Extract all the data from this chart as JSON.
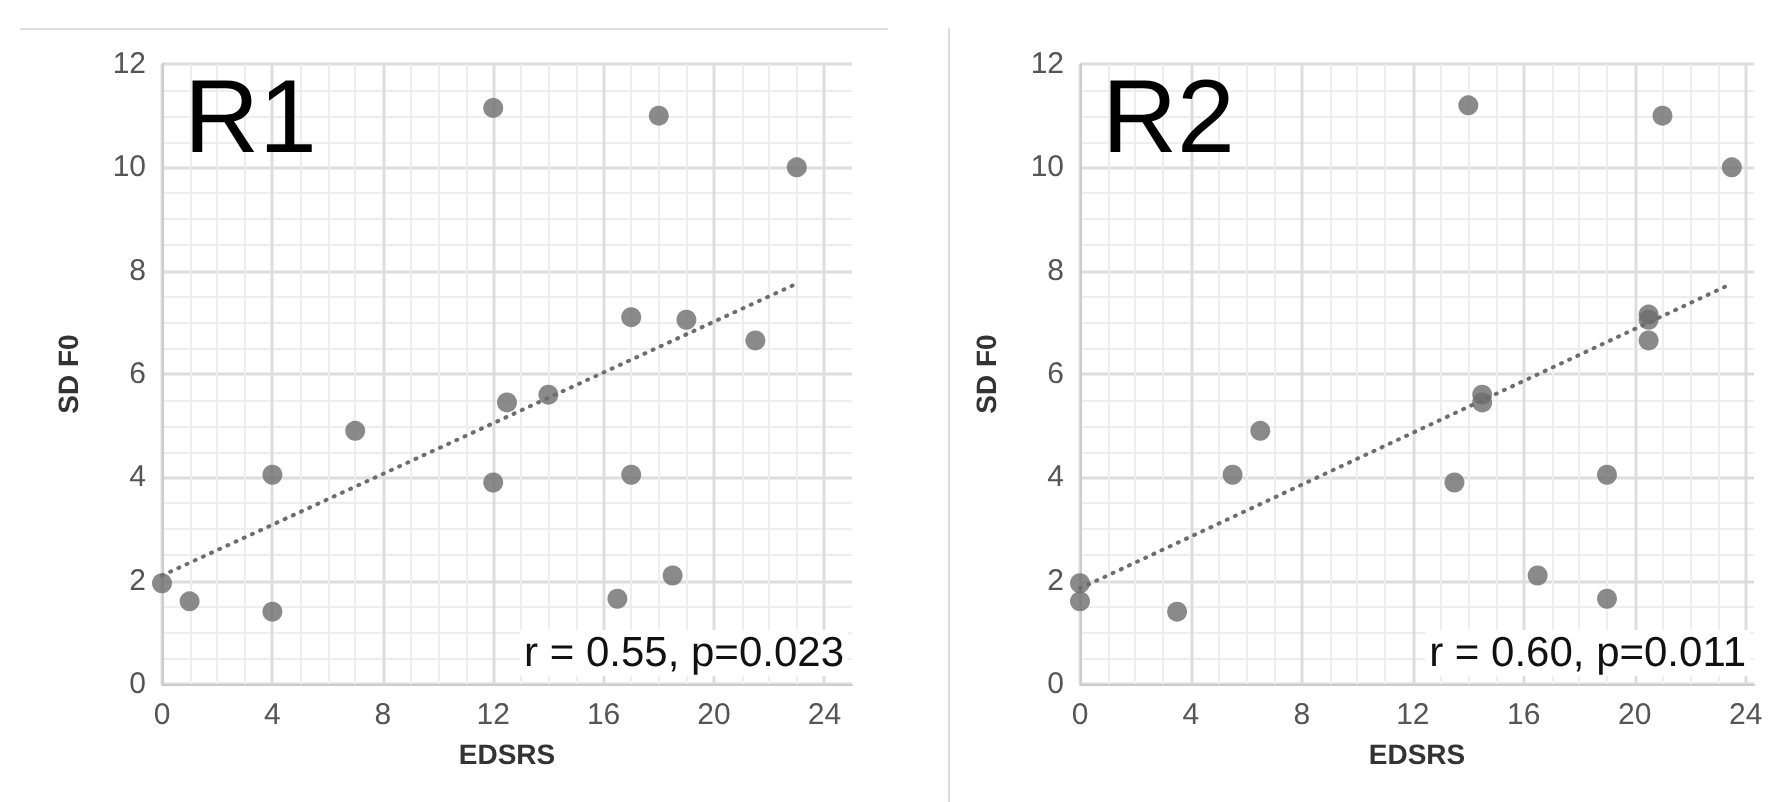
{
  "chart_data": [
    {
      "type": "scatter",
      "title": "R1",
      "xlabel": "EDSRS",
      "ylabel": "SD F0",
      "annotations": [
        "r = 0.55, p=0.023"
      ],
      "xlim": [
        0,
        25
      ],
      "ylim": [
        0,
        12
      ],
      "xticks": [
        0,
        4,
        8,
        12,
        16,
        20,
        24
      ],
      "yticks": [
        0,
        2,
        4,
        6,
        8,
        10,
        12
      ],
      "grid": true,
      "marker": "circle",
      "series": [
        {
          "color": "#6d6d6d",
          "x": [
            0,
            1,
            4,
            4,
            7,
            12,
            12,
            12.5,
            14,
            16.5,
            17,
            17,
            18,
            18.5,
            19,
            21.5,
            23
          ],
          "values": [
            1.95,
            1.6,
            1.4,
            4.05,
            4.9,
            11.15,
            3.9,
            5.45,
            5.6,
            1.65,
            7.1,
            4.05,
            11,
            2.1,
            7.05,
            6.65,
            10
          ]
        },
        {
          "type": "line",
          "color": "#6d6d6d",
          "line_style": "dotted",
          "marker": "none",
          "x": [
            0,
            23
          ],
          "values": [
            2.1,
            7.75
          ]
        }
      ]
    },
    {
      "type": "scatter",
      "title": "R2",
      "xlabel": "EDSRS",
      "ylabel": "SD F0",
      "annotations": [
        "r = 0.60, p=0.011"
      ],
      "xlim": [
        0,
        24.3
      ],
      "ylim": [
        0,
        12
      ],
      "xticks": [
        0,
        4,
        8,
        12,
        16,
        20,
        24
      ],
      "yticks": [
        0,
        2,
        4,
        6,
        8,
        10,
        12
      ],
      "grid": true,
      "marker": "circle",
      "series": [
        {
          "color": "#6d6d6d",
          "x": [
            0,
            0,
            3.5,
            5.5,
            6.5,
            13.5,
            14,
            14.5,
            14.5,
            16.5,
            19,
            19,
            20.5,
            20.5,
            20.5,
            21,
            23.5
          ],
          "values": [
            1.95,
            1.6,
            1.4,
            4.05,
            4.9,
            3.9,
            11.2,
            5.6,
            5.45,
            2.1,
            4.05,
            1.65,
            7.15,
            7.05,
            6.65,
            11,
            10
          ]
        },
        {
          "type": "line",
          "color": "#6d6d6d",
          "line_style": "dotted",
          "marker": "none",
          "x": [
            0,
            23.5
          ],
          "values": [
            1.85,
            7.75
          ]
        }
      ]
    }
  ]
}
